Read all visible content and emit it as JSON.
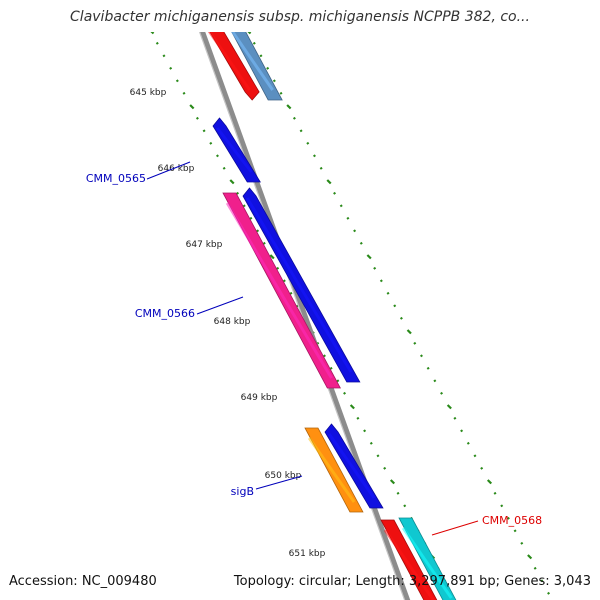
{
  "title": "Clavibacter michiganensis subsp. michiganensis NCPPB 382, co...",
  "footer": {
    "accession": "Accession: NC_009480",
    "summary": "Topology: circular; Length: 3,297,891 bp; Genes: 3,043"
  },
  "colors": {
    "backbone": "#8c8c8c",
    "ticks": "#2a8a1a",
    "gene_blue": "#1010e0",
    "gene_red": "#ee1010",
    "gene_steelblue": "#5b8fc0",
    "gene_pink": "#f0208c",
    "gene_orange": "#ff9010",
    "gene_cyan": "#10c8d0",
    "label_blue": "#0000bb",
    "label_red": "#dd0000"
  },
  "kbp_labels": [
    "645 kbp",
    "646 kbp",
    "647 kbp",
    "648 kbp",
    "649 kbp",
    "650 kbp",
    "651 kbp"
  ],
  "gene_labels": [
    {
      "text": "CMM_0565",
      "color": "label_blue"
    },
    {
      "text": "CMM_0566",
      "color": "label_blue"
    },
    {
      "text": "sigB",
      "color": "label_blue"
    },
    {
      "text": "CMM_0568",
      "color": "label_red"
    }
  ],
  "genes": [
    {
      "color": "gene_red"
    },
    {
      "color": "gene_steelblue"
    },
    {
      "color": "gene_blue"
    },
    {
      "color": "gene_pink"
    },
    {
      "color": "gene_blue"
    },
    {
      "color": "gene_orange"
    },
    {
      "color": "gene_blue"
    },
    {
      "color": "gene_red"
    },
    {
      "color": "gene_cyan"
    }
  ]
}
